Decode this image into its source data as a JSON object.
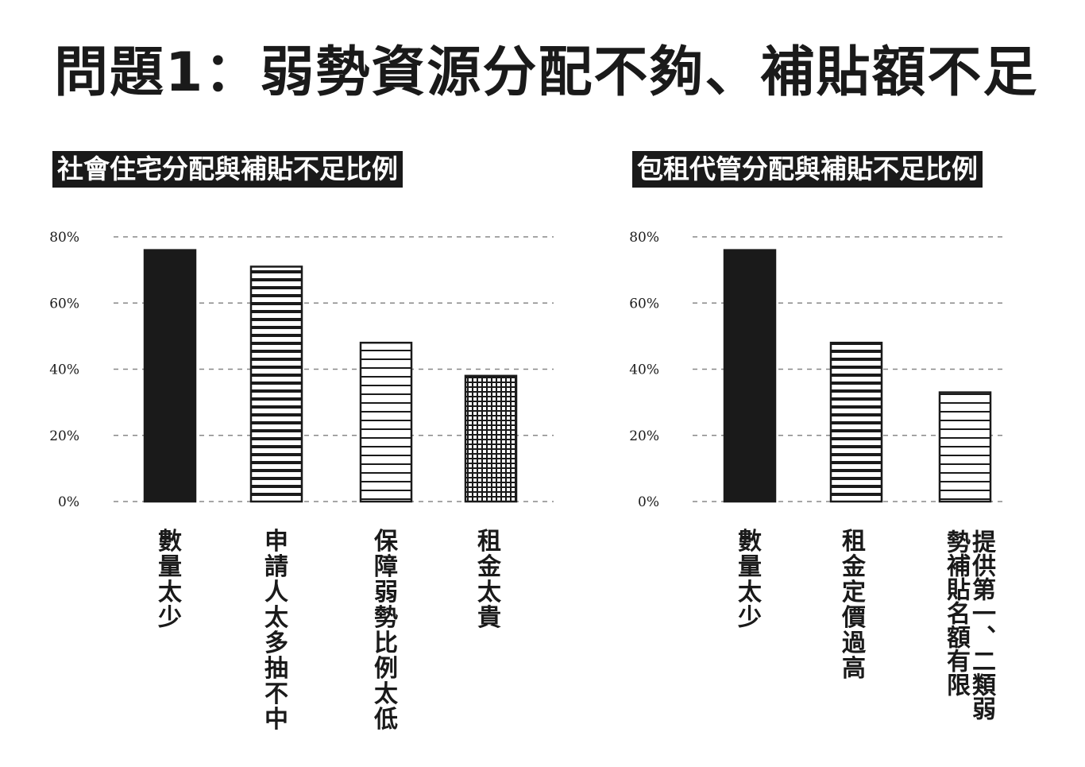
{
  "page": {
    "title": "問題1：弱勢資源分配不夠、補貼額不足"
  },
  "chart_data": [
    {
      "type": "bar",
      "title": "社會住宅分配與補貼不足比例",
      "categories": [
        "數量太少",
        "申請人太多抽不中",
        "保障弱勢比例太低",
        "租金太貴"
      ],
      "values": [
        76,
        71,
        48,
        38
      ],
      "patterns": [
        "solid",
        "horizontal-lines",
        "horizontal-lines-sparse",
        "grid"
      ],
      "ylim": [
        0,
        80
      ],
      "yticks": [
        "0%",
        "20%",
        "40%",
        "60%",
        "80%"
      ],
      "grid": true,
      "legend": "none"
    },
    {
      "type": "bar",
      "title": "包租代管分配與補貼不足比例",
      "categories": [
        "數量太少",
        "租金定價過高",
        "提供第一、二類弱勢補貼名額有限"
      ],
      "values": [
        76,
        48,
        33
      ],
      "patterns": [
        "solid",
        "horizontal-lines",
        "horizontal-lines-sparse"
      ],
      "ylim": [
        0,
        80
      ],
      "yticks": [
        "0%",
        "20%",
        "40%",
        "60%",
        "80%"
      ],
      "grid": true,
      "legend": "none"
    }
  ],
  "colors": {
    "ink": "#1a1a1a",
    "grid": "#888888",
    "background": "#ffffff"
  }
}
